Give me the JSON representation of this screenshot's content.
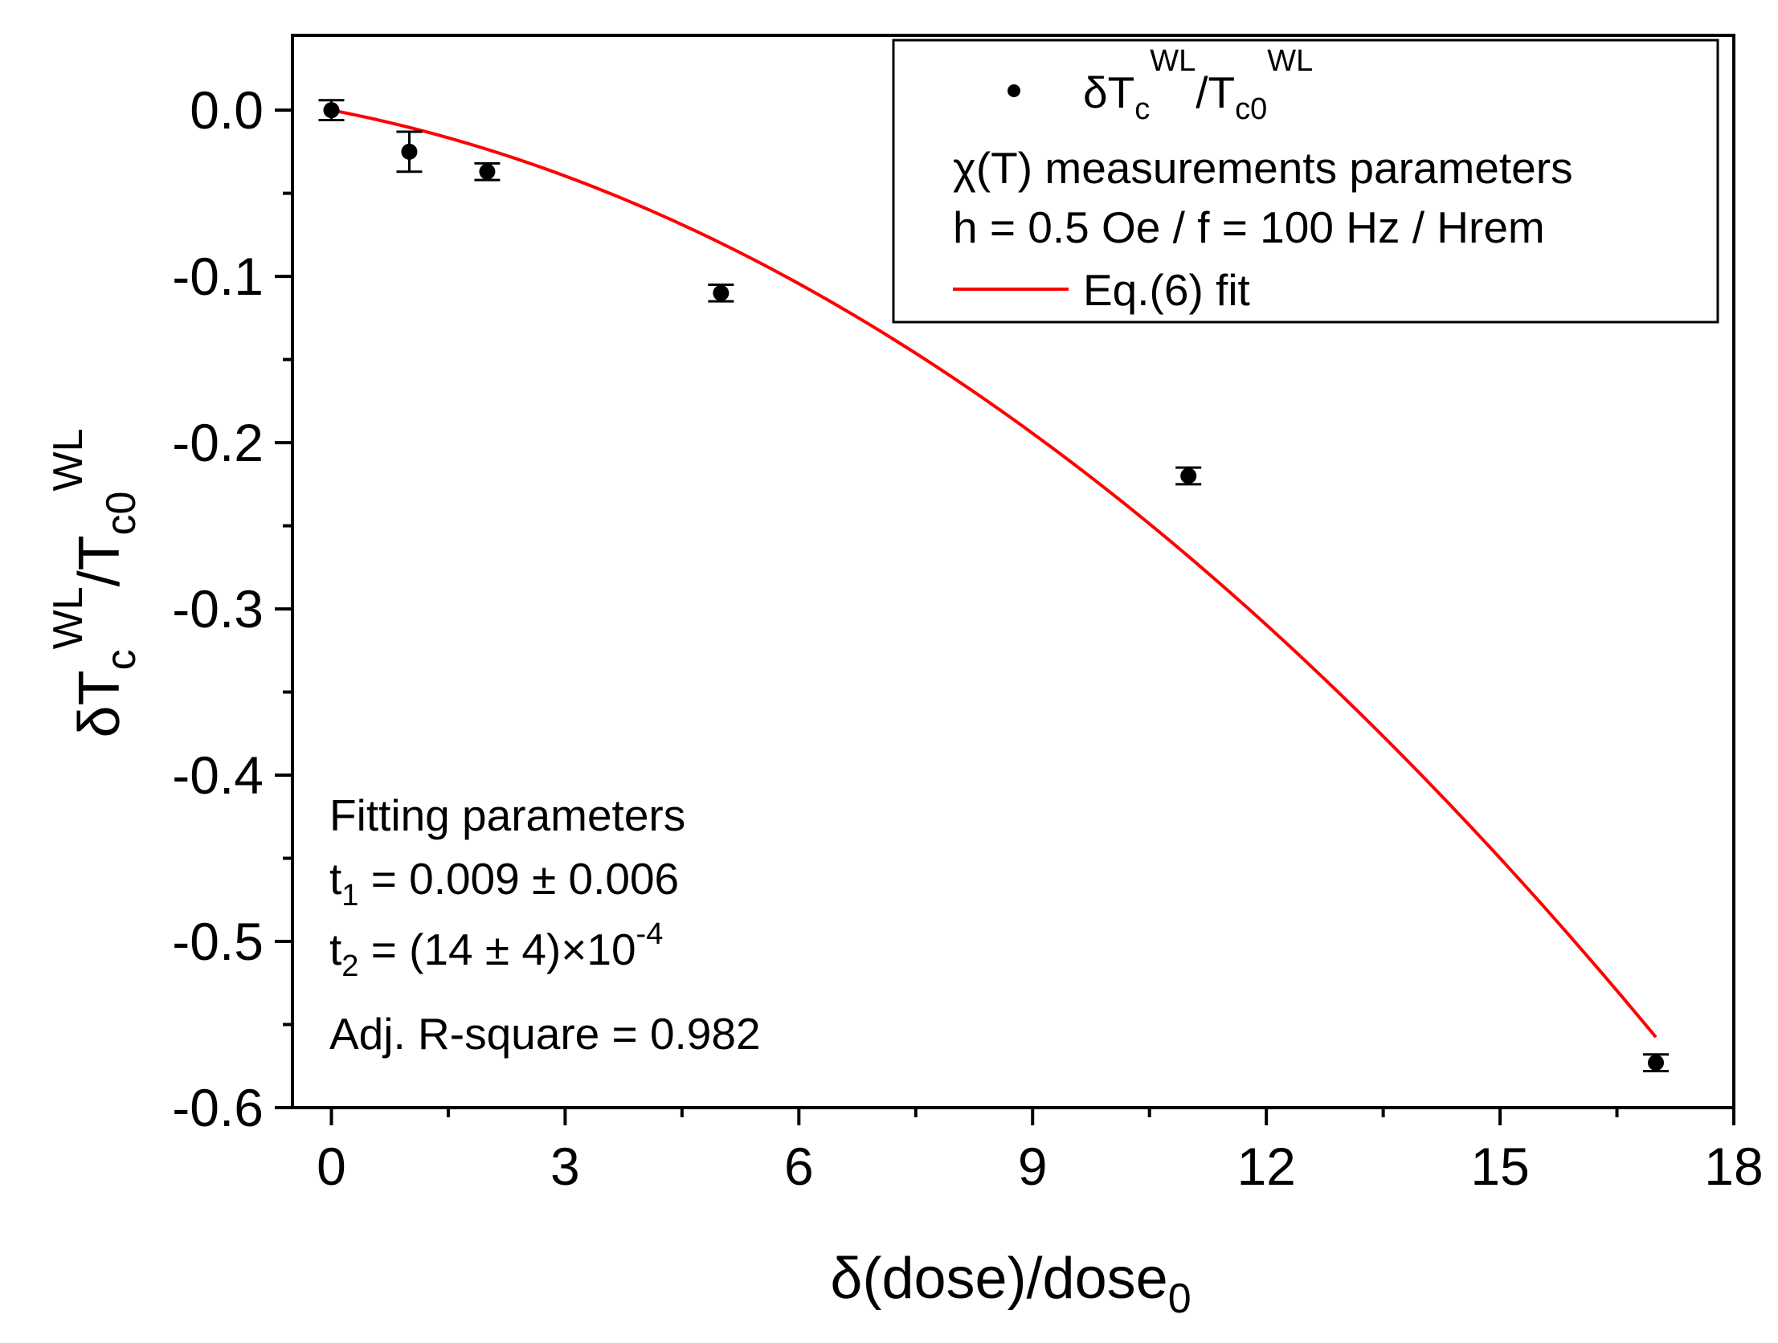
{
  "chart_data": {
    "type": "scatter",
    "title": "",
    "xlabel": {
      "main": "δ(dose)/dose",
      "sub": "0"
    },
    "ylabel": {
      "delta": "δ",
      "T1": "T",
      "sub1": "c",
      "sup1": "WL",
      "slash": "/T",
      "sub2": "c0",
      "sup2": "WL"
    },
    "xlim": [
      -0.5,
      18
    ],
    "ylim": [
      -0.6,
      0.045
    ],
    "x_ticks": [
      0,
      3,
      6,
      9,
      12,
      15,
      18
    ],
    "x_tick_labels": [
      "0",
      "3",
      "6",
      "9",
      "12",
      "15",
      "18"
    ],
    "x_minor_ticks": [
      1.5,
      4.5,
      7.5,
      10.5,
      13.5,
      16.5
    ],
    "y_ticks": [
      0.0,
      -0.1,
      -0.2,
      -0.3,
      -0.4,
      -0.5,
      -0.6
    ],
    "y_tick_labels": [
      "0.0",
      "-0.1",
      "-0.2",
      "-0.3",
      "-0.4",
      "-0.5",
      "-0.6"
    ],
    "y_minor_ticks": [
      -0.05,
      -0.15,
      -0.25,
      -0.35,
      -0.45,
      -0.55
    ],
    "series": [
      {
        "name": "δTc^WL/Tc0^WL",
        "kind": "scatter",
        "color": "#000000",
        "x": [
          0,
          1,
          2,
          5,
          11,
          17
        ],
        "y": [
          0.0,
          -0.025,
          -0.037,
          -0.11,
          -0.22,
          -0.573
        ],
        "yerr": [
          0.006,
          0.012,
          0.005,
          0.005,
          0.005,
          0.005
        ]
      },
      {
        "name": "Eq.(6) fit",
        "kind": "line",
        "color": "#ff0000",
        "model": {
          "t1": 0.009,
          "t2": 0.0014
        },
        "x_range": [
          0,
          17
        ]
      }
    ],
    "legend": {
      "position": "top-right",
      "entry1": {
        "main": "δT",
        "sub1": "c",
        "sup1": "WL",
        "slash": "/T",
        "sub2": "c0",
        "sup2": "WL"
      },
      "info_line1": "χ(T) measurements parameters",
      "info_line2": "h = 0.5 Oe / f = 100 Hz / Hrem",
      "fit_label": "Eq.(6) fit"
    },
    "annotation": {
      "position": "bottom-left",
      "line1": "Fitting parameters",
      "t1_label": "t",
      "t1_sub": "1",
      "t1_value": " = 0.009 ± 0.006",
      "t2_label": "t",
      "t2_sub": "2",
      "t2_value": " = (14 ± 4)×10",
      "t2_exp": "-4",
      "line4": "Adj. R-square = 0.982"
    }
  }
}
